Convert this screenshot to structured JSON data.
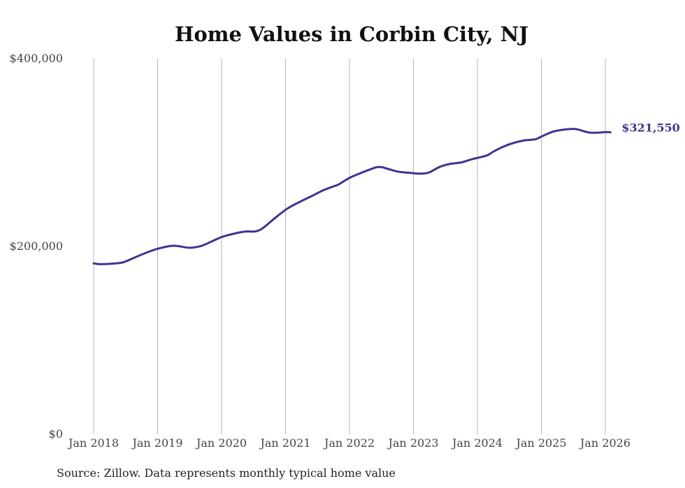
{
  "chart_data": {
    "type": "line",
    "title": "Home Values in Corbin City, NJ",
    "xlabel": "",
    "ylabel": "",
    "ylim": [
      0,
      400000
    ],
    "grid": "vertical",
    "y_ticks": [
      {
        "value": 0,
        "label": "$0"
      },
      {
        "value": 200000,
        "label": "$200,000"
      },
      {
        "value": 400000,
        "label": "$400,000"
      }
    ],
    "x_ticks": [
      {
        "value": 2018.0,
        "label": "Jan 2018"
      },
      {
        "value": 2019.0,
        "label": "Jan 2019"
      },
      {
        "value": 2020.0,
        "label": "Jan 2020"
      },
      {
        "value": 2021.0,
        "label": "Jan 2021"
      },
      {
        "value": 2022.0,
        "label": "Jan 2022"
      },
      {
        "value": 2023.0,
        "label": "Jan 2023"
      },
      {
        "value": 2024.0,
        "label": "Jan 2024"
      },
      {
        "value": 2025.0,
        "label": "Jan 2025"
      },
      {
        "value": 2026.0,
        "label": "Jan 2026"
      }
    ],
    "xlim": [
      2018.0,
      2026.0
    ],
    "series": [
      {
        "name": "Typical home value",
        "color": "#3d3590",
        "end_label": "$321,550",
        "x": [
          2018.0,
          2018.08,
          2018.25,
          2018.42,
          2018.5,
          2018.67,
          2018.83,
          2019.0,
          2019.17,
          2019.25,
          2019.33,
          2019.5,
          2019.67,
          2019.83,
          2020.0,
          2020.17,
          2020.33,
          2020.42,
          2020.5,
          2020.58,
          2020.67,
          2020.83,
          2021.0,
          2021.08,
          2021.25,
          2021.42,
          2021.58,
          2021.75,
          2021.83,
          2022.0,
          2022.17,
          2022.33,
          2022.42,
          2022.5,
          2022.58,
          2022.75,
          2022.92,
          2023.0,
          2023.08,
          2023.17,
          2023.25,
          2023.42,
          2023.58,
          2023.75,
          2023.92,
          2024.0,
          2024.08,
          2024.17,
          2024.25,
          2024.42,
          2024.58,
          2024.75,
          2024.83,
          2024.92,
          2025.0,
          2025.17,
          2025.33,
          2025.5,
          2025.58,
          2025.75,
          2025.92,
          2026.0,
          2026.08
        ],
        "values": [
          182000,
          181200,
          181500,
          182500,
          184000,
          189000,
          193500,
          197500,
          200200,
          200700,
          200300,
          198600,
          200300,
          204800,
          210000,
          213200,
          215500,
          216000,
          215800,
          217000,
          220800,
          230000,
          239000,
          242400,
          248400,
          254000,
          259500,
          264000,
          266000,
          273000,
          278000,
          282200,
          284300,
          284500,
          283000,
          279800,
          278500,
          278000,
          277500,
          277800,
          279000,
          285000,
          288000,
          289500,
          293000,
          294300,
          295600,
          297500,
          301000,
          306700,
          310500,
          313100,
          313500,
          314400,
          317000,
          322000,
          324200,
          325200,
          324400,
          321300,
          321300,
          321800,
          321550
        ]
      }
    ]
  },
  "source_note": "Source: Zillow. Data represents monthly typical home value"
}
